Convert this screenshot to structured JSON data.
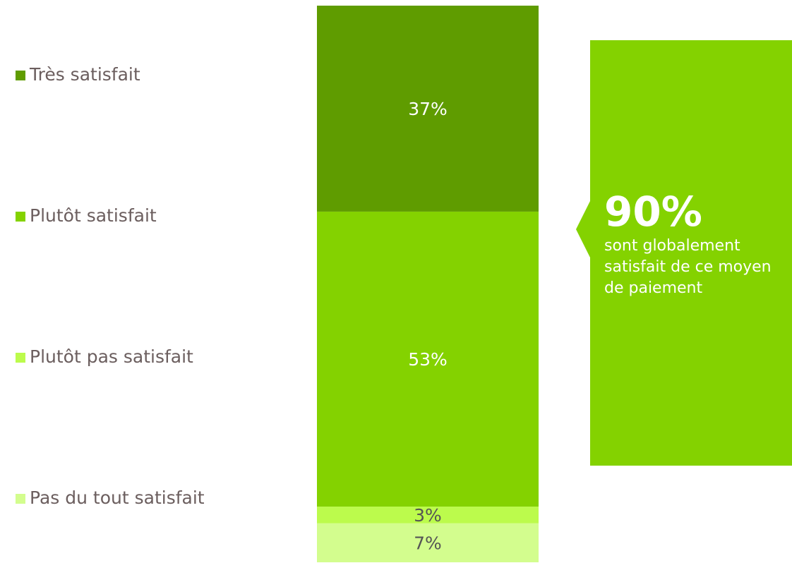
{
  "chart_data": {
    "type": "stacked_bar",
    "series": [
      {
        "name": "Très satisfait",
        "color": "#5f9c00",
        "values": [
          37
        ],
        "value_labels": [
          "37%"
        ]
      },
      {
        "name": "Plutôt satisfait",
        "color": "#84d200",
        "values": [
          53
        ],
        "value_labels": [
          "53%"
        ]
      },
      {
        "name": "Plutôt pas satisfait",
        "color": "#bcfb4c",
        "values": [
          3
        ],
        "value_labels": [
          "3%"
        ]
      },
      {
        "name": "Pas du tout satisfait",
        "color": "#d3fd8e",
        "values": [
          7
        ],
        "value_labels": [
          "7%"
        ]
      }
    ],
    "annotation": {
      "headline": "90%",
      "text": "sont globalement satisfait de ce moyen de paiement",
      "color": "#84d200"
    }
  }
}
